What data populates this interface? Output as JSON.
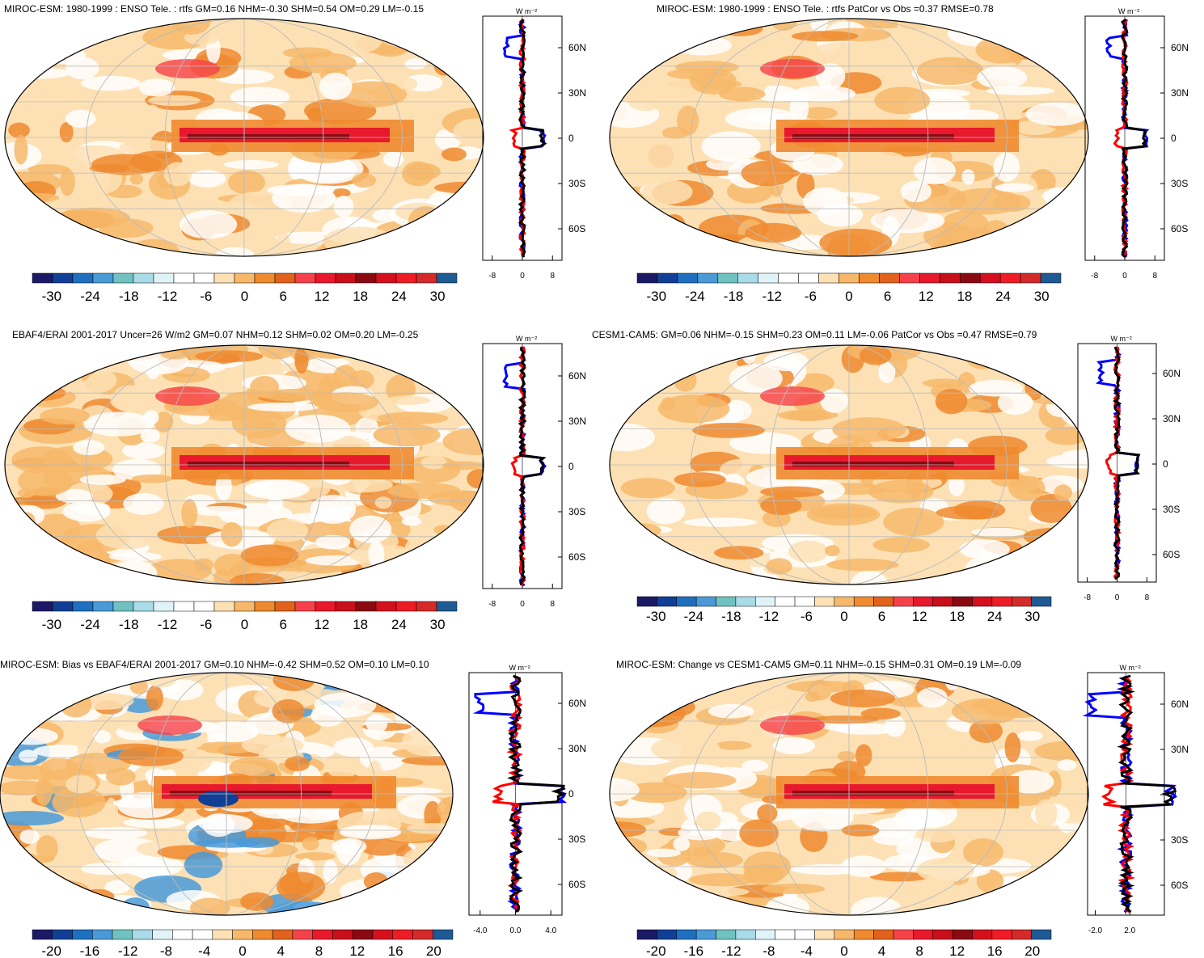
{
  "panels": [
    {
      "title": "MIROC-ESM: 1980-1999 : ENSO Tele. : rtfs GM=0.16 NHM=-0.30 SHM=0.54 OM=0.29 LM=-0.15",
      "colorbar_labels": [
        "-30",
        "-24",
        "-18",
        "-12",
        "-6",
        "0",
        "6",
        "12",
        "18",
        "24",
        "30"
      ],
      "profile_ticks": [
        "-8",
        "0",
        "8"
      ],
      "profile_unit": "W m⁻²",
      "lat_labels": [
        "60N",
        "30N",
        "0",
        "30S",
        "60S"
      ]
    },
    {
      "title": "MIROC-ESM: 1980-1999 : ENSO Tele. : rtfs PatCor vs Obs =0.37 RMSE=0.78",
      "colorbar_labels": [
        "-30",
        "-24",
        "-18",
        "-12",
        "-6",
        "0",
        "6",
        "12",
        "18",
        "24",
        "30"
      ],
      "profile_ticks": [
        "-8",
        "0",
        "8"
      ],
      "profile_unit": "W m⁻²",
      "lat_labels": [
        "60N",
        "30N",
        "0",
        "30S",
        "60S"
      ]
    },
    {
      "title": "EBAF4/ERAI 2001-2017 Uncer=26 W/m2 GM=0.07 NHM=0.12 SHM=0.02 OM=0.20 LM=-0.25",
      "colorbar_labels": [
        "-30",
        "-24",
        "-18",
        "-12",
        "-6",
        "0",
        "6",
        "12",
        "18",
        "24",
        "30"
      ],
      "profile_ticks": [
        "-8",
        "0",
        "8"
      ],
      "profile_unit": "W m⁻²",
      "lat_labels": [
        "60N",
        "30N",
        "0",
        "30S",
        "60S"
      ]
    },
    {
      "title": "CESM1-CAM5: GM=0.06 NHM=-0.15 SHM=0.23 OM=0.11 LM=-0.06 PatCor vs Obs =0.47 RMSE=0.79",
      "colorbar_labels": [
        "-30",
        "-24",
        "-18",
        "-12",
        "-6",
        "0",
        "6",
        "12",
        "18",
        "24",
        "30"
      ],
      "profile_ticks": [
        "-8",
        "0",
        "8"
      ],
      "profile_unit": "W m⁻²",
      "lat_labels": [
        "60N",
        "30N",
        "0",
        "30S",
        "60S"
      ]
    },
    {
      "title": "MIROC-ESM: Bias vs EBAF4/ERAI 2001-2017 GM=0.10 NHM=-0.42 SHM=0.52 OM=0.10 LM=0.10",
      "colorbar_labels": [
        "-20",
        "-16",
        "-12",
        "-8",
        "-4",
        "0",
        "4",
        "8",
        "12",
        "16",
        "20"
      ],
      "profile_ticks": [
        "-4.0",
        "0.0",
        "4.0"
      ],
      "profile_unit": "W m⁻²",
      "lat_labels": [
        "60N",
        "30N",
        "0",
        "30S",
        "60S"
      ]
    },
    {
      "title": "MIROC-ESM: Change vs CESM1-CAM5 GM=0.11 NHM=-0.15 SHM=0.31 OM=0.19 LM=-0.09",
      "colorbar_labels": [
        "-20",
        "-16",
        "-12",
        "-8",
        "-4",
        "0",
        "4",
        "8",
        "12",
        "16",
        "20"
      ],
      "profile_ticks": [
        "-2.0",
        "2.0"
      ],
      "profile_unit": "W m⁻²",
      "lat_labels": [
        "60N",
        "30N",
        "0",
        "30S",
        "60S"
      ]
    }
  ],
  "colormap": [
    "#1a1a66",
    "#123f96",
    "#1f6fc0",
    "#4a9ad8",
    "#6fc2c0",
    "#a9dbe8",
    "#e0f3f8",
    "#ffffff",
    "#ffffff",
    "#fde1b5",
    "#f7b86b",
    "#ef8a2f",
    "#e0621c",
    "#f5424a",
    "#e8192d",
    "#c80f1a",
    "#8b0a12",
    "#d4101e",
    "#ee1c25",
    "#d42a2a",
    "#1e5a94"
  ],
  "line_colors": {
    "red": "#ff0000",
    "blue": "#0000ff",
    "black": "#000000"
  }
}
